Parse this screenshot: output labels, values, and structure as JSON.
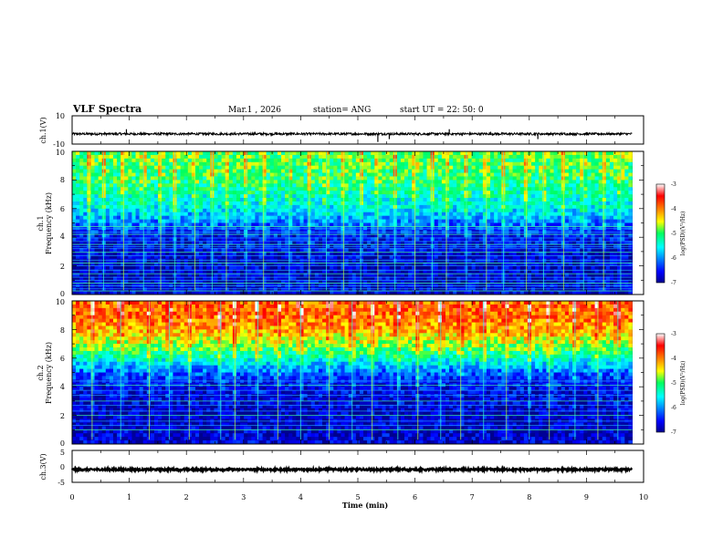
{
  "header": {
    "title": "VLF Spectra",
    "date": "Mar.1 , 2026",
    "station": "station= ANG",
    "start_ut": "start UT = 22: 50: 0"
  },
  "chart_data": [
    {
      "type": "line",
      "id": "ch1-waveform",
      "ylabel": "ch.1(V)",
      "ylim": [
        -10,
        10
      ],
      "yticks": [
        "10",
        "-10"
      ],
      "xlim": [
        0,
        10
      ],
      "baseline": -2.8,
      "noise_band": [
        -3.6,
        -2.0
      ],
      "spikes": [
        {
          "x": 0.95,
          "y": 0.5
        },
        {
          "x": 5.35,
          "y": -8.5
        },
        {
          "x": 5.55,
          "y": -6.5
        },
        {
          "x": 6.6,
          "y": 0.5
        },
        {
          "x": 8.15,
          "y": -6.5
        }
      ]
    },
    {
      "type": "heatmap",
      "id": "ch1-spectrogram",
      "ylabel_top": "ch.1",
      "ylabel": "Frequency (kHz)",
      "ylim": [
        0,
        10
      ],
      "yticks": [
        "0",
        "2",
        "4",
        "6",
        "8",
        "10"
      ],
      "xlim": [
        0,
        9.8
      ],
      "level_range_log10": [
        -7,
        -3
      ],
      "colorbar": {
        "label": "log(PSD)(V²/Hz)",
        "ticks": [
          "-3",
          "-4",
          "-5",
          "-6",
          "-7"
        ]
      },
      "profile": [
        {
          "f": 10,
          "level": -4.9
        },
        {
          "f": 8,
          "level": -5.1
        },
        {
          "f": 6,
          "level": -5.6
        },
        {
          "f": 5,
          "level": -6.1
        },
        {
          "f": 4,
          "level": -6.6
        },
        {
          "f": 2,
          "level": -6.8
        },
        {
          "f": 0,
          "level": -6.7
        }
      ],
      "lines_khz": [
        0.25,
        0.4,
        0.6,
        0.8,
        1.0,
        1.2,
        1.45,
        1.7,
        2.0,
        2.2,
        2.4,
        2.7,
        2.95,
        3.2,
        3.35,
        3.5,
        3.7,
        3.95,
        4.2,
        4.35,
        4.6,
        4.75
      ],
      "bursts_min": [
        0.3,
        0.55,
        0.9,
        1.25,
        1.55,
        1.8,
        2.15,
        2.45,
        2.7,
        3.05,
        3.35,
        3.8,
        4.15,
        4.45,
        4.75,
        5.05,
        5.35,
        5.65,
        6.0,
        6.3,
        6.55,
        6.9,
        7.25,
        7.55,
        7.95,
        8.25,
        8.6,
        8.95,
        9.3,
        9.6
      ]
    },
    {
      "type": "heatmap",
      "id": "ch2-spectrogram",
      "ylabel_top": "ch.2",
      "ylabel": "Frequency (kHz)",
      "ylim": [
        0,
        10
      ],
      "yticks": [
        "0",
        "2",
        "4",
        "6",
        "8",
        "10"
      ],
      "xlim": [
        0,
        9.8
      ],
      "level_range_log10": [
        -7,
        -3
      ],
      "colorbar": {
        "label": "log(PSD)(V²/Hz)",
        "ticks": [
          "-3",
          "-4",
          "-5",
          "-6",
          "-7"
        ]
      },
      "profile": [
        {
          "f": 10,
          "level": -3.9
        },
        {
          "f": 9,
          "level": -3.9
        },
        {
          "f": 8,
          "level": -4.2
        },
        {
          "f": 7,
          "level": -4.7
        },
        {
          "f": 6,
          "level": -5.4
        },
        {
          "f": 5,
          "level": -6.2
        },
        {
          "f": 4,
          "level": -6.6
        },
        {
          "f": 2,
          "level": -6.85
        },
        {
          "f": 0,
          "level": -6.7
        }
      ],
      "lines_khz": [
        1.0,
        1.3,
        1.6,
        2.0,
        2.3,
        2.7,
        3.0,
        3.4,
        3.75,
        4.1,
        4.4
      ],
      "bursts_min": [
        0.35,
        0.85,
        1.35,
        1.7,
        2.05,
        2.6,
        2.85,
        3.25,
        3.6,
        4.0,
        4.5,
        4.9,
        5.25,
        5.7,
        6.05,
        6.45,
        6.8,
        7.2,
        7.6,
        8.0,
        8.35,
        8.8,
        9.2,
        9.55
      ]
    },
    {
      "type": "line",
      "id": "ch3-waveform",
      "ylabel": "ch.3(V)",
      "ylim": [
        -5,
        5
      ],
      "yticks": [
        "5",
        "0",
        "-5"
      ],
      "xlim": [
        0,
        9.8
      ],
      "baseline": -1.0,
      "noise_band": [
        -1.3,
        -0.7
      ]
    }
  ],
  "xaxis": {
    "label": "Time (min)",
    "ticks": [
      "0",
      "1",
      "2",
      "3",
      "4",
      "5",
      "6",
      "7",
      "8",
      "9",
      "10"
    ],
    "range": [
      0,
      10
    ]
  }
}
